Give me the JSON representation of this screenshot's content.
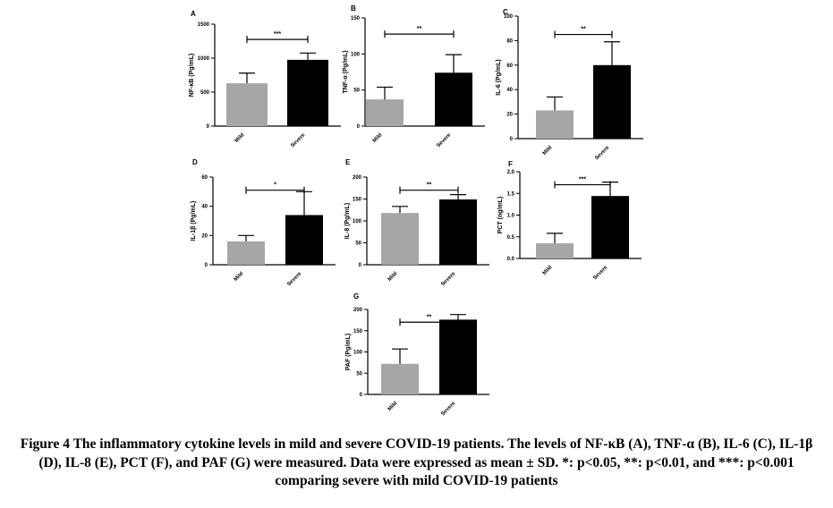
{
  "caption": "Figure 4 The inflammatory cytokine levels in mild and severe COVID-19 patients. The levels of NF-κB (A), TNF-α (B), IL-6 (C), IL-1β (D), IL-8 (E), PCT (F), and PAF (G) were measured. Data were expressed as mean ± SD. *: p<0.05, **: p<0.01, and ***: p<0.001 comparing severe with mild COVID-19 patients",
  "colors": {
    "mild": "#a6a6a6",
    "severe": "#000000"
  },
  "chart_data": [
    {
      "panel": "A",
      "type": "bar",
      "categories": [
        "Mild",
        "Severe"
      ],
      "values": [
        630,
        975
      ],
      "errors": [
        150,
        100
      ],
      "ylabel": "NF-κB (Pg/mL)",
      "ylim": [
        0,
        1500
      ],
      "yticks": [
        "0",
        "500",
        "1000",
        "1500"
      ],
      "significance": "***"
    },
    {
      "panel": "B",
      "type": "bar",
      "categories": [
        "Mild",
        "Severe"
      ],
      "values": [
        37,
        74
      ],
      "errors": [
        17,
        25
      ],
      "ylabel": "TNF-α (Pg/mL)",
      "ylim": [
        0,
        150
      ],
      "yticks": [
        "0",
        "50",
        "100",
        "150"
      ],
      "significance": "**"
    },
    {
      "panel": "C",
      "type": "bar",
      "categories": [
        "Mild",
        "Severe"
      ],
      "values": [
        23,
        60
      ],
      "errors": [
        11,
        19
      ],
      "ylabel": "IL-6 (Pg/mL)",
      "ylim": [
        0,
        100
      ],
      "yticks": [
        "0",
        "20",
        "40",
        "60",
        "80",
        "100"
      ],
      "significance": "**"
    },
    {
      "panel": "D",
      "type": "bar",
      "categories": [
        "Mild",
        "Severe"
      ],
      "values": [
        16,
        34
      ],
      "errors": [
        4,
        16
      ],
      "ylabel": "IL-1β (Pg/mL)",
      "ylim": [
        0,
        60
      ],
      "yticks": [
        "0",
        "20",
        "40",
        "60"
      ],
      "significance": "*"
    },
    {
      "panel": "E",
      "type": "bar",
      "categories": [
        "Mild",
        "Severe"
      ],
      "values": [
        118,
        149
      ],
      "errors": [
        15,
        11
      ],
      "ylabel": "IL-8 (Pg/mL)",
      "ylim": [
        0,
        200
      ],
      "yticks": [
        "0",
        "50",
        "100",
        "150",
        "200"
      ],
      "significance": "**"
    },
    {
      "panel": "F",
      "type": "bar",
      "categories": [
        "Mild",
        "Severe"
      ],
      "values": [
        0.35,
        1.44
      ],
      "errors": [
        0.23,
        0.32
      ],
      "ylabel": "PCT (ng/mL)",
      "ylim": [
        0,
        2.0
      ],
      "yticks": [
        "0.0",
        "0.5",
        "1.0",
        "1.5",
        "2.0"
      ],
      "significance": "***"
    },
    {
      "panel": "G",
      "type": "bar",
      "categories": [
        "Mild",
        "Severe"
      ],
      "values": [
        72,
        176
      ],
      "errors": [
        35,
        12
      ],
      "ylabel": "PAF (Pg/mL)",
      "ylim": [
        0,
        200
      ],
      "yticks": [
        "0",
        "50",
        "100",
        "150",
        "200"
      ],
      "significance": "**"
    }
  ]
}
